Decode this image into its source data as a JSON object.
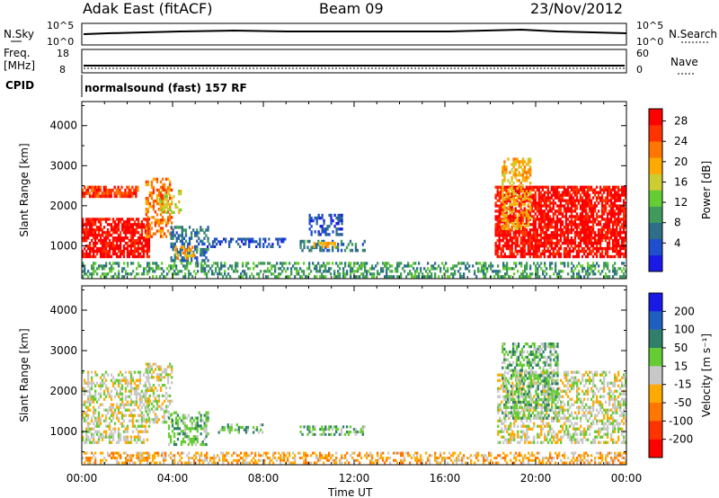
{
  "header": {
    "station": "Adak East (fitACF)",
    "beam": "Beam 09",
    "date": "23/Nov/2012"
  },
  "strip_labels": {
    "nsky": "N.Sky",
    "nsky_top": "10^5",
    "nsky_bottom": "10^0",
    "nsearch": "N.Search",
    "nsearch_top": "10^5",
    "nsearch_bottom": "10^0",
    "freq_line1": "Freq.",
    "freq_line2": "[MHz]",
    "freq_top": "18",
    "freq_bottom": "8",
    "nave": "Nave",
    "nave_top": "60",
    "nave_bottom": "0",
    "cpid": "CPID",
    "cpid_value": "normalsound (fast) 157 RF"
  },
  "chart_data": [
    {
      "type": "heatmap",
      "panel": "power",
      "ylabel": "Slant Range [km]",
      "xlabel": "",
      "xticks": [
        "00:00",
        "04:00",
        "08:00",
        "12:00",
        "16:00",
        "20:00",
        "00:00"
      ],
      "yticks": [
        "1000",
        "2000",
        "3000",
        "4000"
      ],
      "ylim": [
        180,
        4600
      ],
      "colorbar": {
        "label": "Power [dB]",
        "ticks": [
          "4",
          "8",
          "12",
          "16",
          "20",
          "24",
          "28"
        ],
        "colors": [
          "#1a1ae6",
          "#1f4fcc",
          "#2f6e88",
          "#3f9a5c",
          "#66cc33",
          "#cccc33",
          "#ffaa00",
          "#ff7700",
          "#ff3300",
          "#ff0000"
        ]
      },
      "regions": [
        {
          "t": [
            0.0,
            3.0
          ],
          "r": [
            700,
            1700
          ],
          "level": 9
        },
        {
          "t": [
            0.0,
            2.5
          ],
          "r": [
            2200,
            2500
          ],
          "level": 8
        },
        {
          "t": [
            2.8,
            4.0
          ],
          "r": [
            1200,
            2700
          ],
          "level": 7
        },
        {
          "t": [
            3.4,
            4.4
          ],
          "r": [
            1800,
            2400
          ],
          "level": 5
        },
        {
          "t": [
            3.9,
            5.6
          ],
          "r": [
            600,
            1500
          ],
          "level": 2
        },
        {
          "t": [
            4.1,
            5.0
          ],
          "r": [
            650,
            1000
          ],
          "level": 6
        },
        {
          "t": [
            5.5,
            9.0
          ],
          "r": [
            950,
            1200
          ],
          "level": 1
        },
        {
          "t": [
            9.6,
            12.5
          ],
          "r": [
            850,
            1150
          ],
          "level": 2
        },
        {
          "t": [
            10.2,
            11.2
          ],
          "r": [
            950,
            1100
          ],
          "level": 6
        },
        {
          "t": [
            10.0,
            11.5
          ],
          "r": [
            1250,
            1800
          ],
          "level": 1
        },
        {
          "t": [
            18.2,
            24.0
          ],
          "r": [
            700,
            2500
          ],
          "level": 9
        },
        {
          "t": [
            18.5,
            19.8
          ],
          "r": [
            1400,
            3200
          ],
          "level": 6
        },
        {
          "t": [
            0.0,
            24.0
          ],
          "r": [
            200,
            600
          ],
          "level": 3
        }
      ]
    },
    {
      "type": "heatmap",
      "panel": "velocity",
      "ylabel": "Slant Range [km]",
      "xlabel": "Time UT",
      "xticks": [
        "00:00",
        "04:00",
        "08:00",
        "12:00",
        "16:00",
        "20:00",
        "00:00"
      ],
      "yticks": [
        "1000",
        "2000",
        "3000",
        "4000"
      ],
      "ylim": [
        180,
        4600
      ],
      "colorbar": {
        "label": "Velocity [m s⁻¹]",
        "ticks": [
          "200",
          "100",
          "50",
          "15",
          "-15",
          "-50",
          "-100",
          "-200"
        ],
        "colors": [
          "#1a1ae6",
          "#1f5fbf",
          "#2f7f6a",
          "#66cc33",
          "#c8c8c8",
          "#ffaa00",
          "#ff7700",
          "#ff3300",
          "#ff0000"
        ]
      },
      "regions": [
        {
          "t": [
            0.0,
            3.0
          ],
          "r": [
            700,
            2500
          ],
          "level": 4
        },
        {
          "t": [
            2.8,
            4.0
          ],
          "r": [
            1200,
            2700
          ],
          "level": 4
        },
        {
          "t": [
            3.8,
            5.6
          ],
          "r": [
            650,
            1500
          ],
          "level": 3
        },
        {
          "t": [
            6.0,
            8.0
          ],
          "r": [
            950,
            1200
          ],
          "level": 3
        },
        {
          "t": [
            9.6,
            12.5
          ],
          "r": [
            900,
            1150
          ],
          "level": 3
        },
        {
          "t": [
            18.3,
            24.0
          ],
          "r": [
            700,
            2500
          ],
          "level": 4
        },
        {
          "t": [
            18.5,
            21.0
          ],
          "r": [
            1300,
            3200
          ],
          "level": 3
        },
        {
          "t": [
            0.0,
            24.0
          ],
          "r": [
            200,
            500
          ],
          "level": 5
        }
      ]
    }
  ]
}
